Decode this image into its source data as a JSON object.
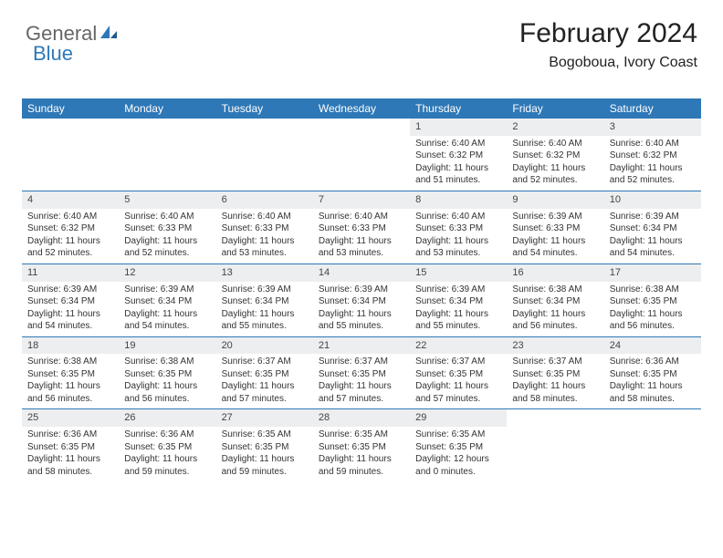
{
  "brand": {
    "word1": "General",
    "word2": "Blue"
  },
  "title": "February 2024",
  "location": "Bogoboua, Ivory Coast",
  "colors": {
    "header_bg": "#2e78b7",
    "header_text": "#ffffff",
    "daynum_bg": "#eceeef",
    "text": "#333333",
    "rule": "#2e78b7"
  },
  "day_names": [
    "Sunday",
    "Monday",
    "Tuesday",
    "Wednesday",
    "Thursday",
    "Friday",
    "Saturday"
  ],
  "weeks": [
    [
      {
        "n": "",
        "sr": "",
        "ss": "",
        "dl": ""
      },
      {
        "n": "",
        "sr": "",
        "ss": "",
        "dl": ""
      },
      {
        "n": "",
        "sr": "",
        "ss": "",
        "dl": ""
      },
      {
        "n": "",
        "sr": "",
        "ss": "",
        "dl": ""
      },
      {
        "n": "1",
        "sr": "Sunrise: 6:40 AM",
        "ss": "Sunset: 6:32 PM",
        "dl": "Daylight: 11 hours and 51 minutes."
      },
      {
        "n": "2",
        "sr": "Sunrise: 6:40 AM",
        "ss": "Sunset: 6:32 PM",
        "dl": "Daylight: 11 hours and 52 minutes."
      },
      {
        "n": "3",
        "sr": "Sunrise: 6:40 AM",
        "ss": "Sunset: 6:32 PM",
        "dl": "Daylight: 11 hours and 52 minutes."
      }
    ],
    [
      {
        "n": "4",
        "sr": "Sunrise: 6:40 AM",
        "ss": "Sunset: 6:32 PM",
        "dl": "Daylight: 11 hours and 52 minutes."
      },
      {
        "n": "5",
        "sr": "Sunrise: 6:40 AM",
        "ss": "Sunset: 6:33 PM",
        "dl": "Daylight: 11 hours and 52 minutes."
      },
      {
        "n": "6",
        "sr": "Sunrise: 6:40 AM",
        "ss": "Sunset: 6:33 PM",
        "dl": "Daylight: 11 hours and 53 minutes."
      },
      {
        "n": "7",
        "sr": "Sunrise: 6:40 AM",
        "ss": "Sunset: 6:33 PM",
        "dl": "Daylight: 11 hours and 53 minutes."
      },
      {
        "n": "8",
        "sr": "Sunrise: 6:40 AM",
        "ss": "Sunset: 6:33 PM",
        "dl": "Daylight: 11 hours and 53 minutes."
      },
      {
        "n": "9",
        "sr": "Sunrise: 6:39 AM",
        "ss": "Sunset: 6:33 PM",
        "dl": "Daylight: 11 hours and 54 minutes."
      },
      {
        "n": "10",
        "sr": "Sunrise: 6:39 AM",
        "ss": "Sunset: 6:34 PM",
        "dl": "Daylight: 11 hours and 54 minutes."
      }
    ],
    [
      {
        "n": "11",
        "sr": "Sunrise: 6:39 AM",
        "ss": "Sunset: 6:34 PM",
        "dl": "Daylight: 11 hours and 54 minutes."
      },
      {
        "n": "12",
        "sr": "Sunrise: 6:39 AM",
        "ss": "Sunset: 6:34 PM",
        "dl": "Daylight: 11 hours and 54 minutes."
      },
      {
        "n": "13",
        "sr": "Sunrise: 6:39 AM",
        "ss": "Sunset: 6:34 PM",
        "dl": "Daylight: 11 hours and 55 minutes."
      },
      {
        "n": "14",
        "sr": "Sunrise: 6:39 AM",
        "ss": "Sunset: 6:34 PM",
        "dl": "Daylight: 11 hours and 55 minutes."
      },
      {
        "n": "15",
        "sr": "Sunrise: 6:39 AM",
        "ss": "Sunset: 6:34 PM",
        "dl": "Daylight: 11 hours and 55 minutes."
      },
      {
        "n": "16",
        "sr": "Sunrise: 6:38 AM",
        "ss": "Sunset: 6:34 PM",
        "dl": "Daylight: 11 hours and 56 minutes."
      },
      {
        "n": "17",
        "sr": "Sunrise: 6:38 AM",
        "ss": "Sunset: 6:35 PM",
        "dl": "Daylight: 11 hours and 56 minutes."
      }
    ],
    [
      {
        "n": "18",
        "sr": "Sunrise: 6:38 AM",
        "ss": "Sunset: 6:35 PM",
        "dl": "Daylight: 11 hours and 56 minutes."
      },
      {
        "n": "19",
        "sr": "Sunrise: 6:38 AM",
        "ss": "Sunset: 6:35 PM",
        "dl": "Daylight: 11 hours and 56 minutes."
      },
      {
        "n": "20",
        "sr": "Sunrise: 6:37 AM",
        "ss": "Sunset: 6:35 PM",
        "dl": "Daylight: 11 hours and 57 minutes."
      },
      {
        "n": "21",
        "sr": "Sunrise: 6:37 AM",
        "ss": "Sunset: 6:35 PM",
        "dl": "Daylight: 11 hours and 57 minutes."
      },
      {
        "n": "22",
        "sr": "Sunrise: 6:37 AM",
        "ss": "Sunset: 6:35 PM",
        "dl": "Daylight: 11 hours and 57 minutes."
      },
      {
        "n": "23",
        "sr": "Sunrise: 6:37 AM",
        "ss": "Sunset: 6:35 PM",
        "dl": "Daylight: 11 hours and 58 minutes."
      },
      {
        "n": "24",
        "sr": "Sunrise: 6:36 AM",
        "ss": "Sunset: 6:35 PM",
        "dl": "Daylight: 11 hours and 58 minutes."
      }
    ],
    [
      {
        "n": "25",
        "sr": "Sunrise: 6:36 AM",
        "ss": "Sunset: 6:35 PM",
        "dl": "Daylight: 11 hours and 58 minutes."
      },
      {
        "n": "26",
        "sr": "Sunrise: 6:36 AM",
        "ss": "Sunset: 6:35 PM",
        "dl": "Daylight: 11 hours and 59 minutes."
      },
      {
        "n": "27",
        "sr": "Sunrise: 6:35 AM",
        "ss": "Sunset: 6:35 PM",
        "dl": "Daylight: 11 hours and 59 minutes."
      },
      {
        "n": "28",
        "sr": "Sunrise: 6:35 AM",
        "ss": "Sunset: 6:35 PM",
        "dl": "Daylight: 11 hours and 59 minutes."
      },
      {
        "n": "29",
        "sr": "Sunrise: 6:35 AM",
        "ss": "Sunset: 6:35 PM",
        "dl": "Daylight: 12 hours and 0 minutes."
      },
      {
        "n": "",
        "sr": "",
        "ss": "",
        "dl": ""
      },
      {
        "n": "",
        "sr": "",
        "ss": "",
        "dl": ""
      }
    ]
  ]
}
